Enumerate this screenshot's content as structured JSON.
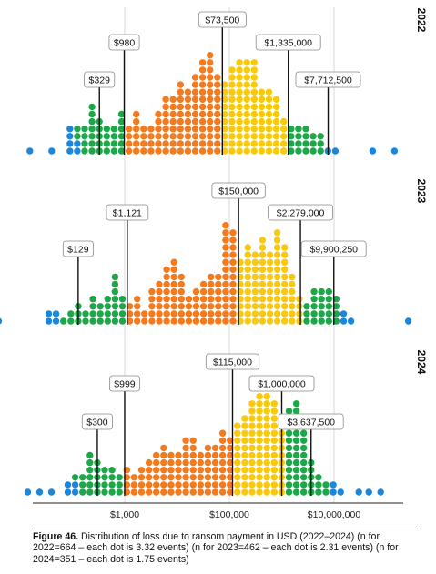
{
  "chart_data": {
    "type": "dot-histogram",
    "x_scale": "log",
    "x_ticks": [
      "$1,000",
      "$100,000",
      "$10,000,000"
    ],
    "x_tick_values": [
      1000,
      100000,
      10000000
    ],
    "colors": {
      "tail": "#1a87df",
      "p5_p25": "#1da64a",
      "p25_p50": "#f47a1e",
      "p50_p75": "#f8c90c",
      "p75_p95": "#1da64a"
    },
    "panels": [
      {
        "year": "2022",
        "n": 664,
        "dot_weight": 3.32,
        "percentiles": [
          {
            "label": "$329",
            "value": 329
          },
          {
            "label": "$980",
            "value": 980
          },
          {
            "label": "$73,500",
            "value": 73500
          },
          {
            "label": "$1,335,000",
            "value": 1335000
          },
          {
            "label": "$7,712,500",
            "value": 7712500
          }
        ],
        "outliers_low_x": [
          -44,
          -20
        ],
        "outliers_high_x": [
          41,
          65
        ],
        "column_heights": [
          4,
          4,
          4,
          7,
          5,
          4,
          4,
          6,
          4,
          6,
          4,
          4,
          6,
          8,
          8,
          10,
          9,
          11,
          13,
          14,
          11,
          10,
          12,
          13,
          13,
          13,
          9,
          9,
          8,
          5,
          4,
          4,
          4,
          3,
          3,
          1,
          1
        ]
      },
      {
        "year": "2023",
        "n": 462,
        "dot_weight": 2.31,
        "percentiles": [
          {
            "label": "$129",
            "value": 129
          },
          {
            "label": "$1,121",
            "value": 1121
          },
          {
            "label": "$150,000",
            "value": 150000
          },
          {
            "label": "$2,279,000",
            "value": 2279000
          },
          {
            "label": "$9,900,250",
            "value": 9900250
          }
        ],
        "outliers_low_x": [
          -55
        ],
        "outliers_high_x": [
          63
        ],
        "column_heights": [
          2,
          2,
          1,
          2,
          3,
          2,
          4,
          3,
          4,
          7,
          4,
          3,
          4,
          2,
          5,
          6,
          8,
          9,
          7,
          4,
          5,
          6,
          7,
          7,
          14,
          13,
          9,
          11,
          10,
          12,
          10,
          13,
          11,
          7,
          4,
          3,
          5,
          5,
          5,
          4,
          2,
          1
        ]
      },
      {
        "year": "2024",
        "n": 351,
        "dot_weight": 1.75,
        "percentiles": [
          {
            "label": "$300",
            "value": 300
          },
          {
            "label": "$999",
            "value": 999
          },
          {
            "label": "$115,000",
            "value": 115000
          },
          {
            "label": "$1,000,000",
            "value": 1000000
          },
          {
            "label": "$3,637,500",
            "value": 3637500
          }
        ],
        "outliers_low_x": [
          -44,
          -31,
          -18
        ],
        "outliers_high_x": [
          20,
          31,
          44
        ],
        "column_heights": [
          2,
          3,
          3,
          6,
          5,
          4,
          4,
          3,
          4,
          3,
          4,
          5,
          6,
          7,
          6,
          6,
          8,
          8,
          6,
          7,
          7,
          9,
          8,
          10,
          11,
          13,
          14,
          14,
          13,
          11,
          12,
          13,
          9,
          5,
          3,
          2,
          2,
          1
        ]
      }
    ]
  },
  "caption": {
    "label": "Figure 46.",
    "text": " Distribution of loss due to ransom payment in USD (2022–2024) (n for 2022=664 – each dot is 3.32 events) (n for 2023=462 – each dot is 2.31 events) (n for 2024=351 – each dot is 1.75 events)"
  }
}
